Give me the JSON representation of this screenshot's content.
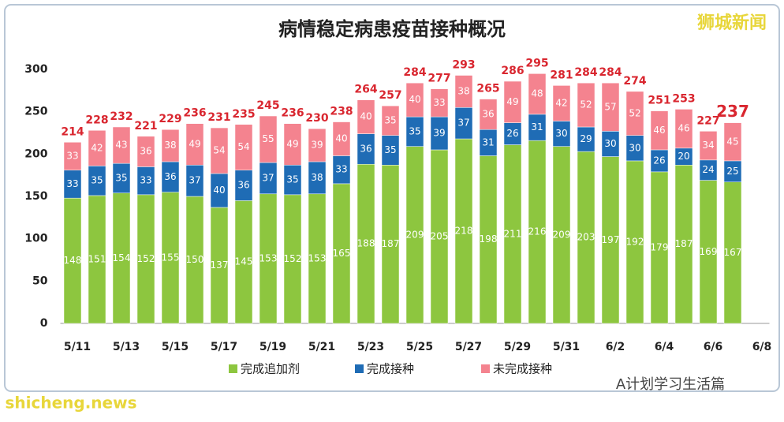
{
  "chart_data": {
    "type": "stacked_bar",
    "title": "病情稳定病患疫苗接种概况",
    "categories": [
      "5/11",
      null,
      "5/13",
      null,
      "5/15",
      null,
      "5/17",
      null,
      "5/19",
      null,
      "5/21",
      null,
      "5/23",
      null,
      "5/25",
      null,
      "5/27",
      null,
      "5/29",
      null,
      "5/31",
      null,
      "6/2",
      null,
      "6/4",
      null,
      "6/6",
      null,
      "6/8"
    ],
    "series": [
      {
        "name": "完成追加剂",
        "color": "#8dc63f",
        "values": [
          148,
          151,
          154,
          152,
          155,
          150,
          137,
          145,
          153,
          152,
          153,
          165,
          188,
          187,
          209,
          205,
          218,
          198,
          211,
          216,
          209,
          203,
          197,
          192,
          179,
          187,
          169,
          167,
          null
        ]
      },
      {
        "name": "完成接种",
        "color": "#1f6cb5",
        "values": [
          33,
          35,
          35,
          33,
          36,
          37,
          40,
          36,
          37,
          35,
          38,
          33,
          36,
          35,
          35,
          39,
          37,
          31,
          26,
          31,
          30,
          29,
          30,
          30,
          26,
          20,
          24,
          25,
          null
        ]
      },
      {
        "name": "未完成接种",
        "color": "#f4838f",
        "values": [
          33,
          42,
          43,
          36,
          38,
          49,
          54,
          54,
          55,
          49,
          39,
          40,
          40,
          35,
          40,
          33,
          38,
          36,
          49,
          48,
          42,
          52,
          57,
          52,
          46,
          46,
          34,
          45,
          null
        ]
      }
    ],
    "totals": [
      214,
      228,
      232,
      221,
      229,
      236,
      231,
      235,
      245,
      236,
      230,
      238,
      264,
      257,
      284,
      277,
      293,
      265,
      286,
      295,
      281,
      284,
      284,
      274,
      251,
      253,
      227,
      237,
      null
    ],
    "ylim": [
      0,
      300
    ],
    "yticks": [
      0,
      50,
      100,
      150,
      200,
      250,
      300
    ],
    "total_color": "#d9262f",
    "brand": "狮城新闻",
    "watermark": "A计划学习生活篇",
    "site": "shicheng.news"
  }
}
